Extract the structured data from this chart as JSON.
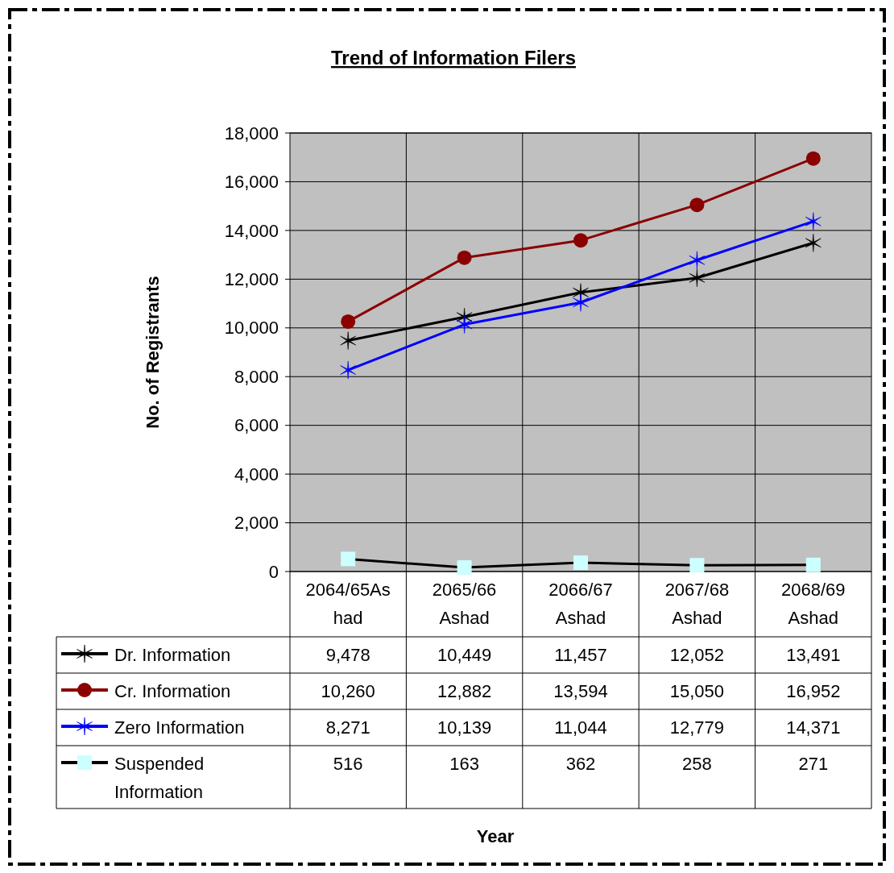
{
  "chart_data": {
    "type": "line",
    "title": "Trend of Information Filers",
    "annotations": [
      "Year"
    ],
    "ylabel": "No. of Registrants",
    "categories": [
      "2064/65Ashad",
      "2065/66 Ashad",
      "2066/67 Ashad",
      "2067/68 Ashad",
      "2068/69 Ashad"
    ],
    "series": [
      {
        "name": "Dr. Information",
        "color": "#000000",
        "marker": "cross",
        "values": [
          9478,
          10449,
          11457,
          12052,
          13491
        ],
        "value_labels": [
          "9,478",
          "10,449",
          "11,457",
          "12,052",
          "13,491"
        ]
      },
      {
        "name": "Cr. Information",
        "color": "#8b0000",
        "marker": "circle",
        "values": [
          10260,
          12882,
          13594,
          15050,
          16952
        ],
        "value_labels": [
          "10,260",
          "12,882",
          "13,594",
          "15,050",
          "16,952"
        ]
      },
      {
        "name": "Zero Information",
        "color": "#0000ff",
        "marker": "cross",
        "values": [
          8271,
          10139,
          11044,
          12779,
          14371
        ],
        "value_labels": [
          "8,271",
          "10,139",
          "11,044",
          "12,779",
          "14,371"
        ]
      },
      {
        "name": "Suspended Information",
        "color": "#000000",
        "colors": [
          "#ccffff",
          "#ccffff",
          "#ccffff",
          "#ccffff",
          "#ccffff"
        ],
        "marker": "square",
        "values": [
          516,
          163,
          362,
          258,
          271
        ],
        "value_labels": [
          "516",
          "163",
          "362",
          "258",
          "271"
        ]
      }
    ],
    "ylim": [
      0,
      18000
    ],
    "yticks": [
      0,
      {
        "value": 2000,
        "label": "2,000"
      },
      {
        "value": 4000,
        "label": "4,000"
      },
      {
        "value": 6000,
        "label": "6,000"
      },
      {
        "value": 8000,
        "label": "8,000"
      },
      {
        "value": 10000,
        "label": "10,000"
      },
      {
        "value": 12000,
        "label": "12,000"
      },
      {
        "value": 14000,
        "label": "14,000"
      },
      {
        "value": 16000,
        "label": "16,000"
      },
      {
        "value": 18000,
        "label": "18,000"
      }
    ],
    "grid": true,
    "legend": "bottom",
    "line_style": "solid"
  }
}
